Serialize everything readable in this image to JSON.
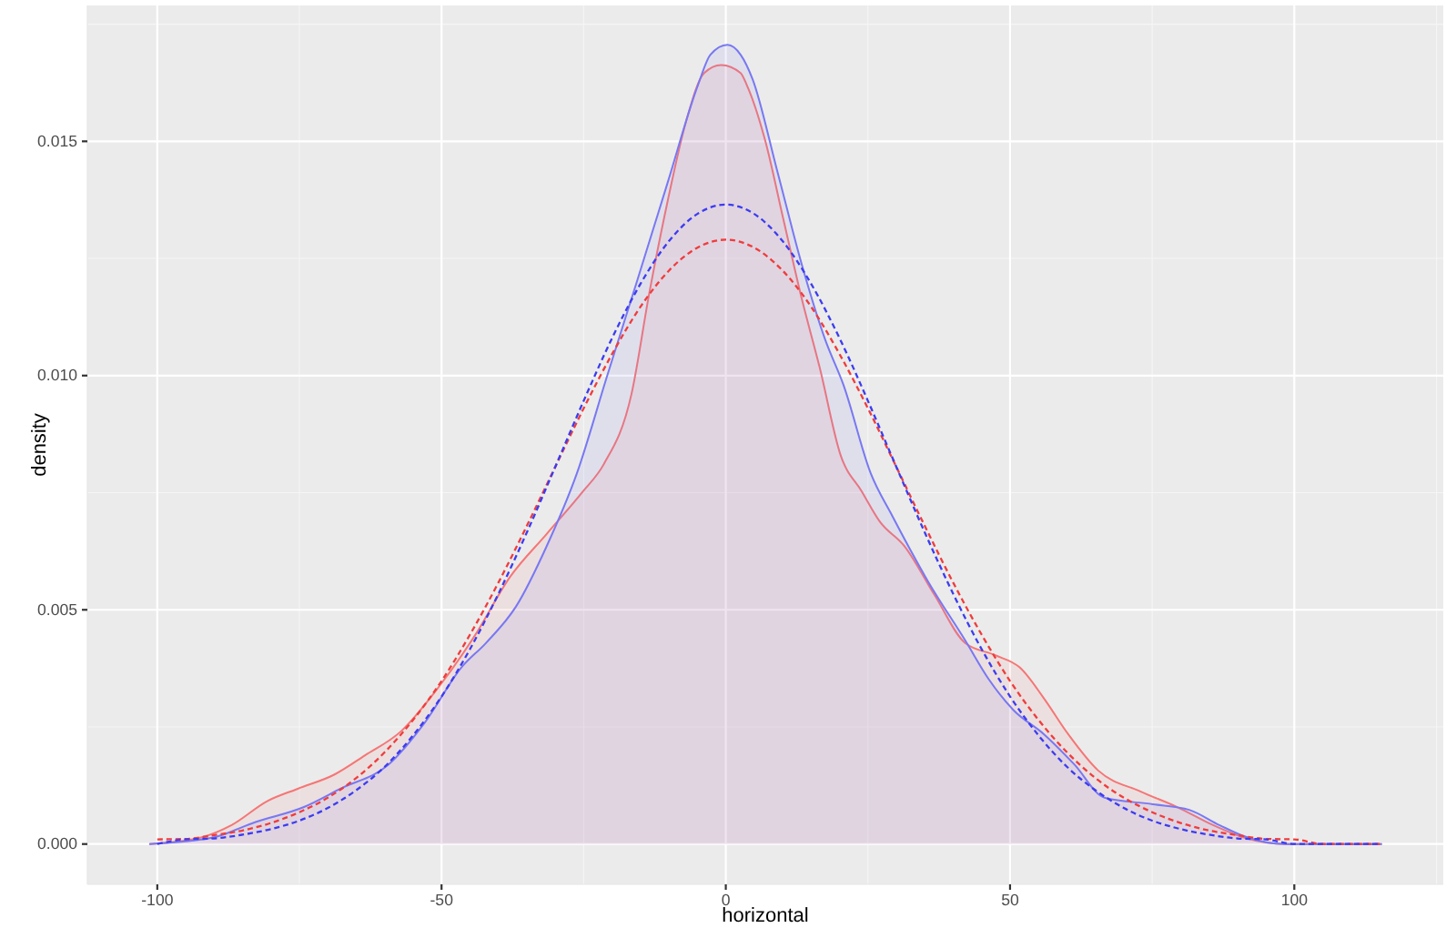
{
  "chart_data": {
    "type": "area",
    "xlabel": "horizontal",
    "ylabel": "density",
    "xlim": [
      -112.3,
      126.2
    ],
    "xticks": [
      -100,
      -50,
      0,
      50,
      100
    ],
    "ylim": [
      -0.00086,
      0.0179
    ],
    "yticks": [
      {
        "value": 0,
        "label": "0.000"
      },
      0.005,
      {
        "value": 0.01,
        "label": "0.010"
      },
      0.015
    ],
    "grid": true,
    "series": [
      {
        "type": "area",
        "line_style": "solid",
        "color": "#f57676",
        "x": [
          -101.4,
          -92.3,
          -87.0,
          -80.6,
          -75.3,
          -68.9,
          -63.5,
          -57.1,
          -50.7,
          -44.3,
          -37.9,
          -31.5,
          -25.1,
          -21.5,
          -16.6,
          -13.4,
          -10.2,
          -7.0,
          -3.8,
          -0.8,
          2.6,
          3.7,
          6.9,
          10.1,
          13.3,
          16.5,
          20.2,
          23.9,
          27.1,
          31.4,
          36.7,
          42.1,
          47.4,
          51.7,
          55.9,
          60.2,
          65.5,
          73.0,
          79.4,
          85.8,
          91.1,
          98.6,
          115.4
        ],
        "values": [
          0,
          0.00014,
          0.0004,
          0.00092,
          0.00118,
          0.00148,
          0.00189,
          0.00241,
          0.00332,
          0.00442,
          0.00571,
          0.00662,
          0.00753,
          0.0081,
          0.0096,
          0.0118,
          0.01374,
          0.01542,
          0.01646,
          0.01663,
          0.01646,
          0.0162,
          0.01503,
          0.01335,
          0.01167,
          0.01018,
          0.0083,
          0.00753,
          0.00688,
          0.00636,
          0.00532,
          0.00429,
          0.00403,
          0.00377,
          0.00312,
          0.00235,
          0.00157,
          0.00112,
          0.00079,
          0.0004,
          0.00014,
          0,
          0
        ]
      },
      {
        "type": "area",
        "line_style": "solid",
        "color": "#7878f2",
        "x": [
          -101.4,
          -90.2,
          -82.7,
          -74.2,
          -67.8,
          -59.3,
          -52.9,
          -46.5,
          -42.2,
          -36.9,
          -31.5,
          -26.2,
          -20.9,
          -15.5,
          -10.2,
          -4.9,
          -2.7,
          0.3,
          2.6,
          4.7,
          9.0,
          13.3,
          17.5,
          20.7,
          25.5,
          29.3,
          35.7,
          42.1,
          46.3,
          50.6,
          55.9,
          61.3,
          66.6,
          75.1,
          81.5,
          86.9,
          91.1,
          98.6,
          115.4
        ],
        "values": [
          0,
          0.00014,
          0.00047,
          0.00079,
          0.00118,
          0.0017,
          0.0026,
          0.00377,
          0.00429,
          0.00507,
          0.00636,
          0.00791,
          0.00998,
          0.01206,
          0.01413,
          0.0162,
          0.01685,
          0.01706,
          0.01685,
          0.01633,
          0.01439,
          0.0124,
          0.01076,
          0.0098,
          0.00791,
          0.007,
          0.00558,
          0.00435,
          0.00351,
          0.00286,
          0.00235,
          0.0017,
          0.00099,
          0.00085,
          0.00073,
          0.0004,
          0.00017,
          0,
          0
        ]
      },
      {
        "type": "line",
        "line_style": "dashed",
        "color": "#f03c3c",
        "x": [
          -100,
          -95,
          -90,
          -85,
          -80,
          -75,
          -70,
          -65,
          -60,
          -55,
          -50,
          -45,
          -40,
          -35,
          -30,
          -25,
          -20,
          -15,
          -10,
          -5,
          0,
          5,
          10,
          15,
          20,
          25,
          30,
          35,
          40,
          45,
          50,
          55,
          60,
          65,
          70,
          75,
          80,
          85,
          90,
          95,
          100,
          105,
          110,
          115
        ],
        "values": [
          0.0001,
          0.00011,
          0.00019,
          0.00029,
          0.00045,
          0.00068,
          0.00099,
          0.00141,
          0.00196,
          0.00265,
          0.00348,
          0.00447,
          0.00558,
          0.00679,
          0.00805,
          0.0093,
          0.01046,
          0.01147,
          0.01224,
          0.01273,
          0.0129,
          0.01273,
          0.01224,
          0.01147,
          0.01046,
          0.0093,
          0.00805,
          0.00679,
          0.00558,
          0.00447,
          0.00348,
          0.00265,
          0.00196,
          0.00141,
          0.00099,
          0.00068,
          0.00045,
          0.00029,
          0.00019,
          0.00011,
          0.0001,
          0,
          0,
          0
        ]
      },
      {
        "type": "line",
        "line_style": "dashed",
        "color": "#3c3cf0",
        "x": [
          -100,
          -95,
          -90,
          -85,
          -80,
          -75,
          -70,
          -65,
          -60,
          -55,
          -50,
          -45,
          -40,
          -35,
          -30,
          -25,
          -20,
          -15,
          -10,
          -5,
          0,
          5,
          10,
          15,
          20,
          25,
          30,
          35,
          40,
          45,
          50,
          55,
          60,
          65,
          70,
          75,
          80,
          85,
          90,
          95,
          100,
          105,
          110,
          115
        ],
        "values": [
          0,
          0.0001,
          0.00012,
          0.0002,
          0.00032,
          0.0005,
          0.00077,
          0.00115,
          0.00165,
          0.00232,
          0.00315,
          0.00416,
          0.00534,
          0.00665,
          0.00805,
          0.00946,
          0.0108,
          0.01196,
          0.01287,
          0.01345,
          0.01365,
          0.01345,
          0.01287,
          0.01196,
          0.0108,
          0.00946,
          0.00805,
          0.00665,
          0.00534,
          0.00416,
          0.00315,
          0.00232,
          0.00165,
          0.00115,
          0.00077,
          0.0005,
          0.00032,
          0.0002,
          0.00012,
          0.0001,
          0,
          0,
          0,
          0
        ]
      }
    ]
  }
}
